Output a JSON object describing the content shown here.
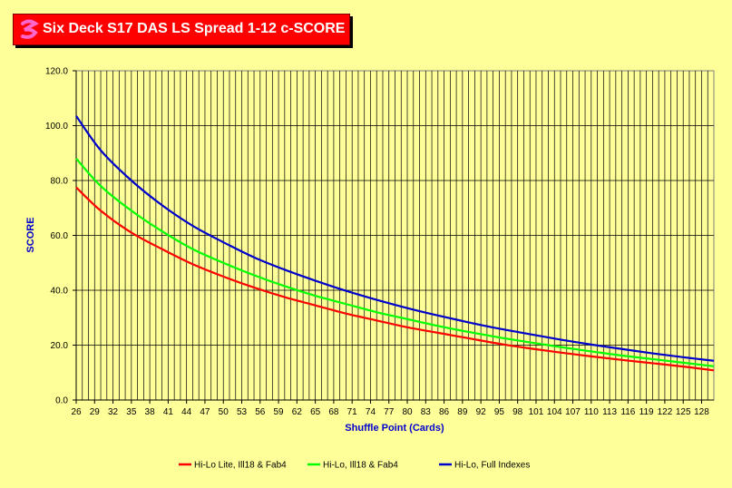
{
  "chart_data": {
    "type": "line",
    "title": "Six Deck S17 DAS LS Spread 1-12 c-SCORE",
    "xlabel": "Shuffle Point (Cards)",
    "ylabel": "SCORE",
    "ylim": [
      0,
      120
    ],
    "yticks": [
      "0.0",
      "20.0",
      "40.0",
      "60.0",
      "80.0",
      "100.0",
      "120.0"
    ],
    "x_start": 26,
    "x_end": 130,
    "xtick_labels": [
      "26",
      "29",
      "32",
      "35",
      "38",
      "41",
      "44",
      "47",
      "50",
      "53",
      "56",
      "59",
      "62",
      "65",
      "68",
      "71",
      "74",
      "77",
      "80",
      "83",
      "86",
      "89",
      "92",
      "95",
      "98",
      "101",
      "104",
      "107",
      "110",
      "113",
      "116",
      "119",
      "122",
      "125",
      "128"
    ],
    "series": [
      {
        "name": "Hi-Lo Lite, Ill18 & Fab4",
        "color": "#FF0000",
        "points": [
          [
            26,
            77.5
          ],
          [
            30,
            69
          ],
          [
            35,
            61
          ],
          [
            40,
            55
          ],
          [
            45,
            49.5
          ],
          [
            50,
            45
          ],
          [
            55,
            41
          ],
          [
            60,
            37.5
          ],
          [
            65,
            34.5
          ],
          [
            70,
            31.5
          ],
          [
            75,
            29
          ],
          [
            80,
            26.5
          ],
          [
            85,
            24.5
          ],
          [
            90,
            22.5
          ],
          [
            95,
            20.5
          ],
          [
            100,
            18.8
          ],
          [
            105,
            17.3
          ],
          [
            110,
            15.9
          ],
          [
            115,
            14.6
          ],
          [
            120,
            13.4
          ],
          [
            125,
            12.2
          ],
          [
            130,
            10.8
          ]
        ]
      },
      {
        "name": "Hi-Lo, Ill18 & Fab4",
        "color": "#00FF00",
        "points": [
          [
            26,
            88
          ],
          [
            30,
            78
          ],
          [
            35,
            69
          ],
          [
            40,
            61.5
          ],
          [
            45,
            55
          ],
          [
            50,
            50
          ],
          [
            55,
            45.5
          ],
          [
            60,
            41.5
          ],
          [
            65,
            38
          ],
          [
            70,
            35
          ],
          [
            75,
            32
          ],
          [
            80,
            29.5
          ],
          [
            85,
            27
          ],
          [
            90,
            24.8
          ],
          [
            95,
            22.8
          ],
          [
            100,
            21
          ],
          [
            105,
            19.3
          ],
          [
            110,
            17.7
          ],
          [
            115,
            16.2
          ],
          [
            120,
            14.9
          ],
          [
            125,
            13.6
          ],
          [
            130,
            12.3
          ]
        ]
      },
      {
        "name": "Hi-Lo, Full Indexes",
        "color": "#0000CC",
        "points": [
          [
            26,
            103.5
          ],
          [
            30,
            91
          ],
          [
            35,
            80
          ],
          [
            40,
            71
          ],
          [
            45,
            63.5
          ],
          [
            50,
            57.5
          ],
          [
            55,
            52
          ],
          [
            60,
            47.5
          ],
          [
            65,
            43.5
          ],
          [
            70,
            39.8
          ],
          [
            75,
            36.5
          ],
          [
            80,
            33.5
          ],
          [
            85,
            30.8
          ],
          [
            90,
            28.3
          ],
          [
            95,
            26
          ],
          [
            100,
            24
          ],
          [
            105,
            22
          ],
          [
            110,
            20.2
          ],
          [
            115,
            18.6
          ],
          [
            120,
            17
          ],
          [
            125,
            15.6
          ],
          [
            130,
            14.3
          ]
        ]
      }
    ],
    "legend_position": "bottom"
  }
}
